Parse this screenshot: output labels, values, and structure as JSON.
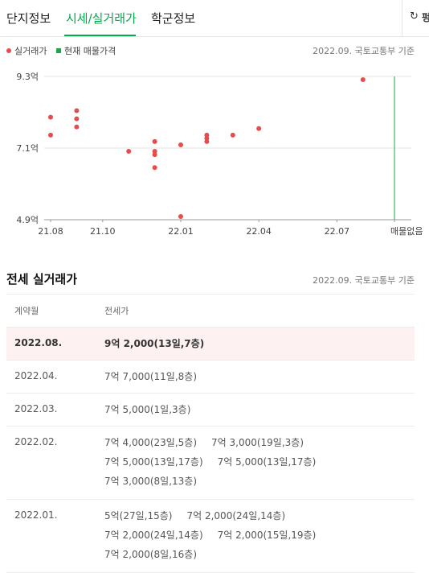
{
  "tabs": [
    {
      "label": "단지정보",
      "active": false
    },
    {
      "label": "시세/실거래가",
      "active": true
    },
    {
      "label": "학군정보",
      "active": false
    }
  ],
  "side_button": {
    "icon": "refresh-icon",
    "label": "펑"
  },
  "legend": {
    "actual": "실거래가",
    "listing": "현재 매물가격",
    "basis": "2022.09. 국토교통부 기준"
  },
  "colors": {
    "accent": "#03a94d",
    "actual_dot": "#e84b4b",
    "listing_line": "#1fa64a",
    "highlight_row": "#fdf1f1"
  },
  "chart_data": {
    "type": "scatter",
    "title": "",
    "xlabel": "",
    "ylabel": "",
    "x_ticks": [
      "21.08",
      "21.10",
      "22.01",
      "22.04",
      "22.07",
      "매물없음"
    ],
    "y_ticks": [
      "9.3억",
      "7.1억",
      "4.9억"
    ],
    "ylim": [
      4.9,
      9.3
    ],
    "grid": true,
    "series": [
      {
        "name": "실거래가",
        "points": [
          {
            "x": "2021.08",
            "y": 8.05
          },
          {
            "x": "2021.08",
            "y": 7.5
          },
          {
            "x": "2021.09",
            "y": 8.25
          },
          {
            "x": "2021.09",
            "y": 8.0
          },
          {
            "x": "2021.09",
            "y": 7.75
          },
          {
            "x": "2021.11",
            "y": 7.0
          },
          {
            "x": "2021.12",
            "y": 7.3
          },
          {
            "x": "2021.12",
            "y": 7.0
          },
          {
            "x": "2021.12",
            "y": 6.9
          },
          {
            "x": "2021.12",
            "y": 6.5
          },
          {
            "x": "2022.01",
            "y": 7.2
          },
          {
            "x": "2022.01",
            "y": 5.0
          },
          {
            "x": "2022.02",
            "y": 7.5
          },
          {
            "x": "2022.02",
            "y": 7.4
          },
          {
            "x": "2022.02",
            "y": 7.3
          },
          {
            "x": "2022.03",
            "y": 7.5
          },
          {
            "x": "2022.04",
            "y": 7.7
          },
          {
            "x": "2022.08",
            "y": 9.2
          }
        ]
      }
    ],
    "listing_marker": "매물없음"
  },
  "section": {
    "title": "전세 실거래가",
    "basis": "2022.09. 국토교통부 기준",
    "col_date": "계약월",
    "col_price": "전세가"
  },
  "rows": [
    {
      "date": "2022.08.",
      "highlight": true,
      "lines": [
        [
          "9억 2,000(13일,7층)"
        ]
      ]
    },
    {
      "date": "2022.04.",
      "highlight": false,
      "lines": [
        [
          "7억 7,000(11일,8층)"
        ]
      ]
    },
    {
      "date": "2022.03.",
      "highlight": false,
      "lines": [
        [
          "7억 5,000(1일,3층)"
        ]
      ]
    },
    {
      "date": "2022.02.",
      "highlight": false,
      "lines": [
        [
          "7억 4,000(23일,5층)",
          "7억 3,000(19일,3층)"
        ],
        [
          "7억 5,000(13일,17층)",
          "7억 5,000(13일,17층)"
        ],
        [
          "7억 3,000(8일,13층)"
        ]
      ]
    },
    {
      "date": "2022.01.",
      "highlight": false,
      "lines": [
        [
          "5억(27일,15층)",
          "7억 2,000(24일,14층)"
        ],
        [
          "7억 2,000(24일,14층)",
          "7억 2,000(15일,19층)"
        ],
        [
          "7억 2,000(8일,16층)"
        ]
      ]
    }
  ]
}
